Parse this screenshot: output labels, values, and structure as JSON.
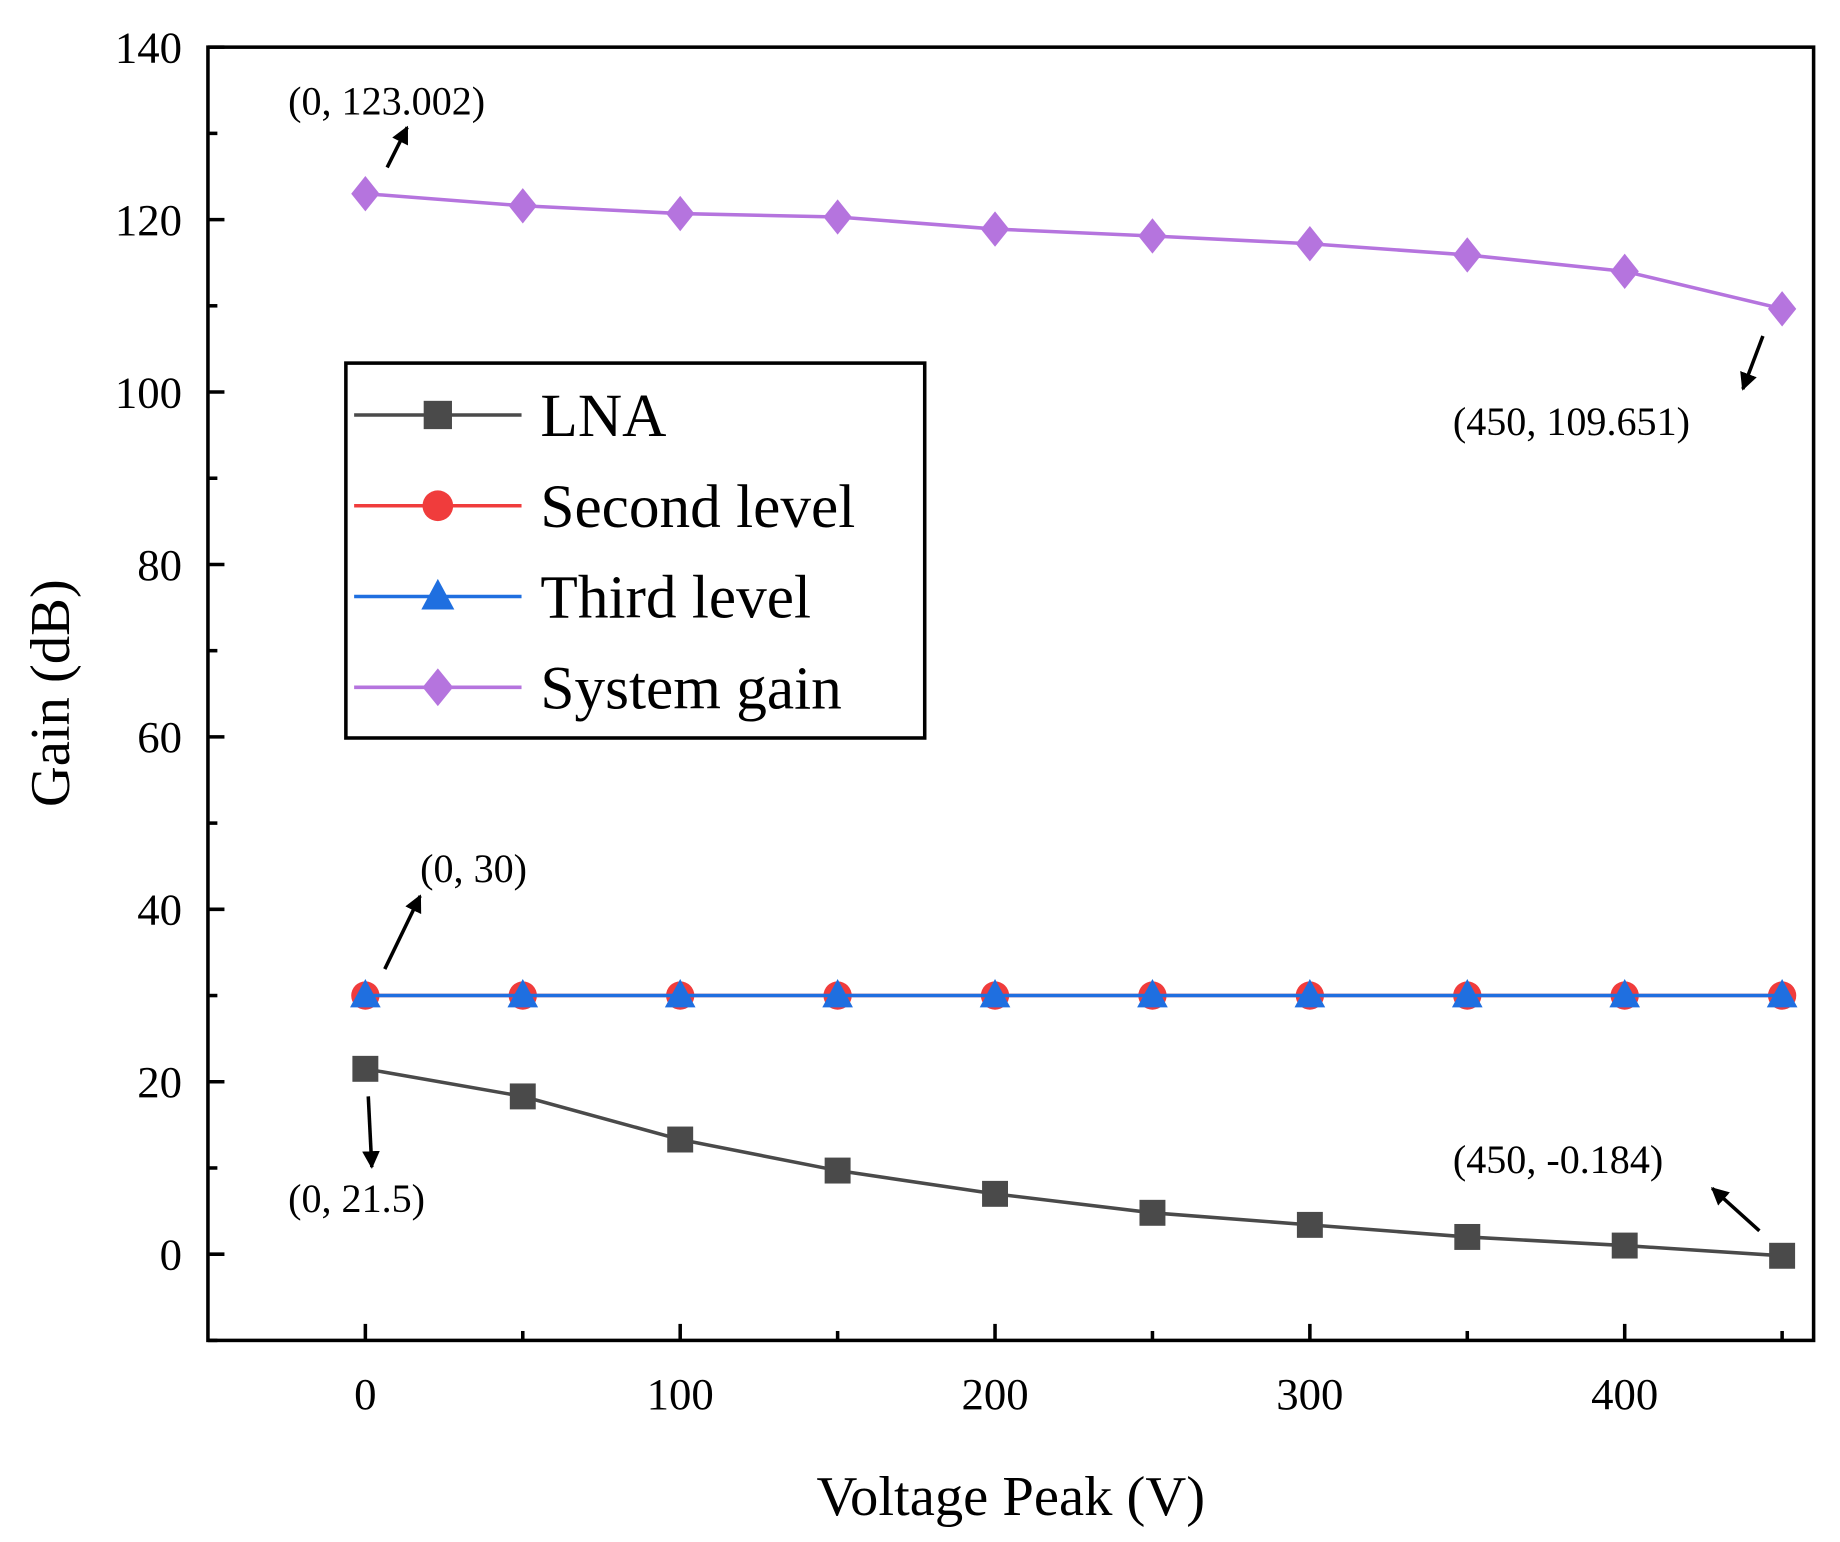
{
  "chart_data": {
    "type": "line",
    "title": "",
    "xlabel": "Voltage Peak (V)",
    "ylabel": "Gain (dB)",
    "xlim": [
      -50,
      460
    ],
    "ylim": [
      -10,
      140
    ],
    "xticks": [
      0,
      100,
      200,
      300,
      400
    ],
    "yticks": [
      0,
      20,
      40,
      60,
      80,
      100,
      120,
      140
    ],
    "grid": false,
    "legend_position": "center-left",
    "x": [
      0,
      50,
      100,
      150,
      200,
      250,
      300,
      350,
      400,
      450
    ],
    "series": [
      {
        "name": "LNA",
        "color": "#4a4a4a",
        "marker": "square",
        "values": [
          21.5,
          18.3,
          13.3,
          9.7,
          7.0,
          4.8,
          3.4,
          2.0,
          1.0,
          -0.184
        ]
      },
      {
        "name": "Second level",
        "color": "#f03c3c",
        "marker": "circle",
        "values": [
          30,
          30,
          30,
          30,
          30,
          30,
          30,
          30,
          30,
          30
        ]
      },
      {
        "name": "Third level",
        "color": "#1f6fe0",
        "marker": "triangle",
        "values": [
          30,
          30,
          30,
          30,
          30,
          30,
          30,
          30,
          30,
          30
        ]
      },
      {
        "name": "System gain",
        "color": "#b574de",
        "marker": "diamond",
        "values": [
          123.002,
          121.6,
          120.7,
          120.3,
          118.9,
          118.1,
          117.2,
          115.9,
          114.0,
          109.651
        ]
      }
    ],
    "annotations": [
      {
        "text": "(0, 123.002)",
        "x": 0,
        "y": 123.002
      },
      {
        "text": "(450, 109.651)",
        "x": 450,
        "y": 109.651
      },
      {
        "text": "(0, 30)",
        "x": 0,
        "y": 30
      },
      {
        "text": "(0, 21.5)",
        "x": 0,
        "y": 21.5
      },
      {
        "text": "(450, -0.184)",
        "x": 450,
        "y": -0.184
      }
    ]
  }
}
